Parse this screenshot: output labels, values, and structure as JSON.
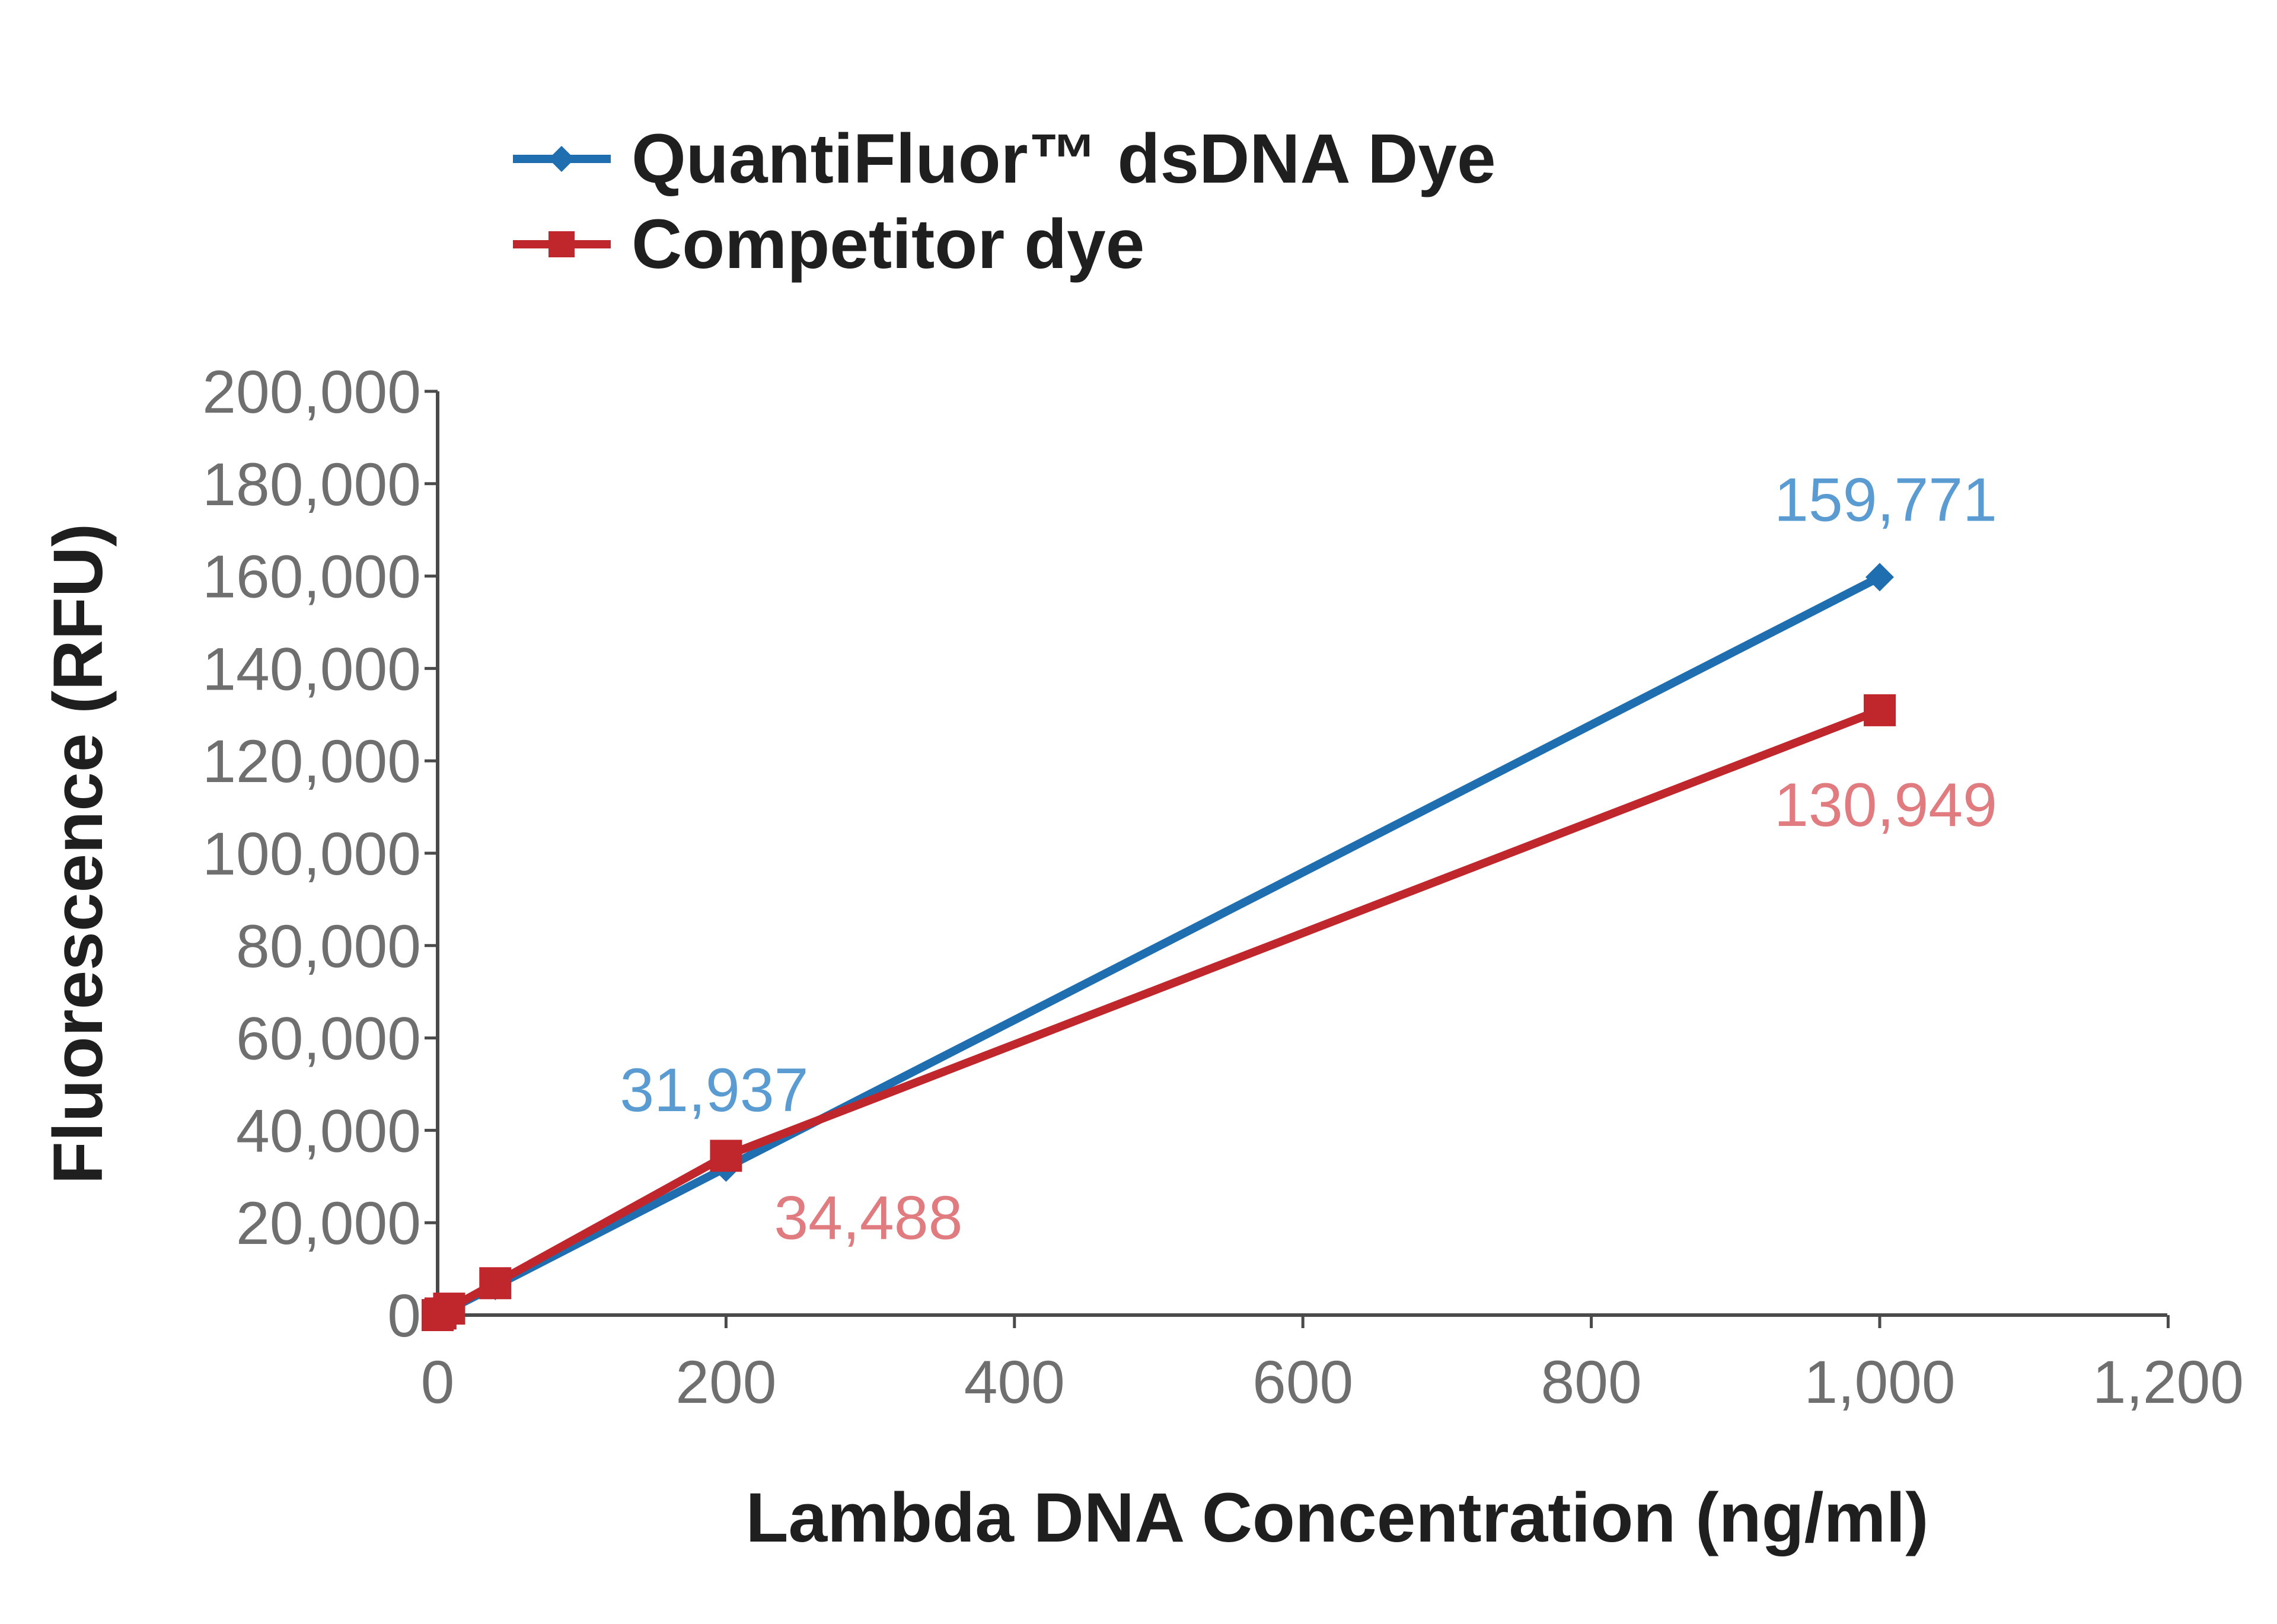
{
  "chart_data": {
    "type": "line",
    "xlabel": "Lambda DNA Concentration (ng/ml)",
    "ylabel": "Fluorescence (RFU)",
    "xlim": [
      0,
      1200
    ],
    "ylim": [
      0,
      200000
    ],
    "x_ticks": [
      "0",
      "200",
      "400",
      "600",
      "800",
      "1,000",
      "1,200"
    ],
    "x_tick_values": [
      0,
      200,
      400,
      600,
      800,
      1000,
      1200
    ],
    "y_ticks": [
      "0",
      "20,000",
      "40,000",
      "60,000",
      "80,000",
      "100,000",
      "120,000",
      "140,000",
      "160,000",
      "180,000",
      "200,000"
    ],
    "y_tick_values": [
      0,
      20000,
      40000,
      60000,
      80000,
      100000,
      120000,
      140000,
      160000,
      180000,
      200000
    ],
    "grid": false,
    "legend_position": "top-left",
    "series": [
      {
        "name": "QuantiFluor™ dsDNA Dye",
        "color": "#1f6fb0",
        "label_color": "#5a9bd1",
        "marker": "diamond",
        "points": [
          {
            "x": 0,
            "y": 0
          },
          {
            "x": 2,
            "y": 300
          },
          {
            "x": 8,
            "y": 1200
          },
          {
            "x": 40,
            "y": 6300
          },
          {
            "x": 200,
            "y": 31937
          },
          {
            "x": 1000,
            "y": 159771
          }
        ]
      },
      {
        "name": "Competitor dye",
        "color": "#c0272d",
        "label_color": "#e07b80",
        "marker": "square",
        "points": [
          {
            "x": 0,
            "y": 0
          },
          {
            "x": 2,
            "y": 350
          },
          {
            "x": 8,
            "y": 1400
          },
          {
            "x": 40,
            "y": 6900
          },
          {
            "x": 200,
            "y": 34488
          },
          {
            "x": 1000,
            "y": 130949
          }
        ]
      }
    ],
    "annotations": [
      {
        "text": "159,771",
        "series": 0,
        "x": 1000,
        "y": 159771,
        "placement": "above"
      },
      {
        "text": "31,937",
        "series": 0,
        "x": 200,
        "y": 31937,
        "placement": "above-left"
      },
      {
        "text": "130,949",
        "series": 1,
        "x": 1000,
        "y": 130949,
        "placement": "below"
      },
      {
        "text": "34,488",
        "series": 1,
        "x": 200,
        "y": 34488,
        "placement": "below-right"
      }
    ]
  }
}
